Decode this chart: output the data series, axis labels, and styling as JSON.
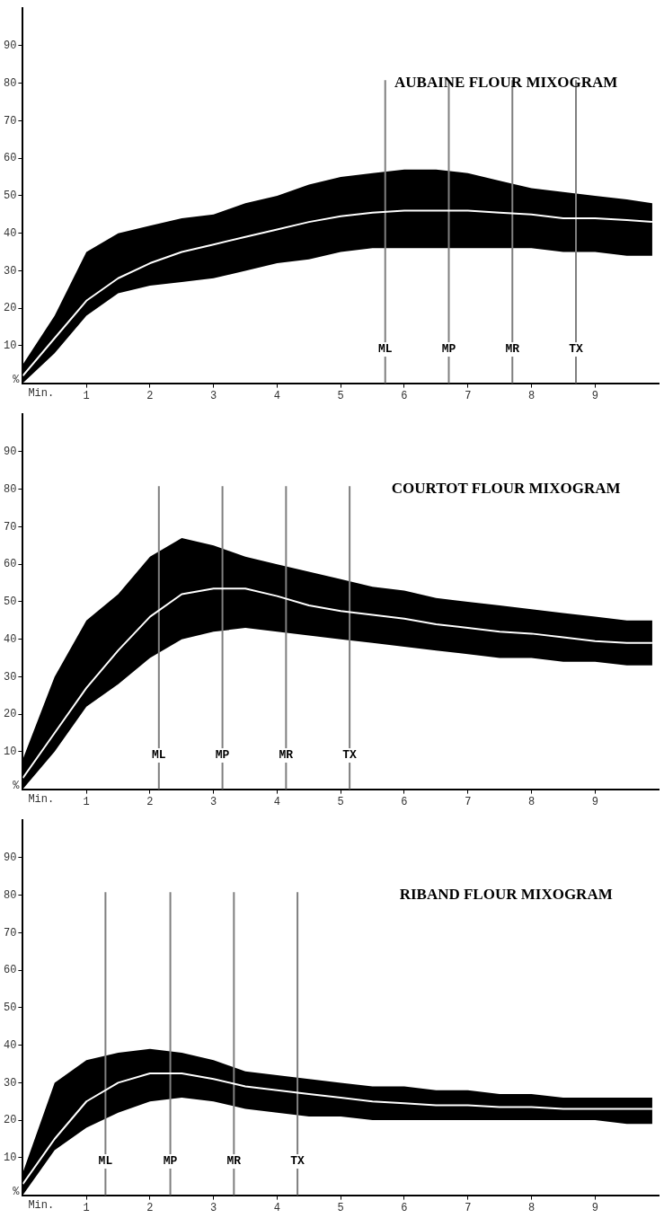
{
  "chart_data": [
    {
      "type": "line",
      "title": "AUBAINE FLOUR MIXOGRAM",
      "xlabel": "Min.",
      "ylabel": "%",
      "xlim": [
        0,
        10
      ],
      "ylim": [
        0,
        100
      ],
      "xticks": [
        1,
        2,
        3,
        4,
        5,
        6,
        7,
        8,
        9
      ],
      "yticks": [
        10,
        20,
        30,
        40,
        50,
        60,
        70,
        80,
        90
      ],
      "grid": false,
      "legend": false,
      "marker": "none",
      "x": [
        0,
        0.5,
        1,
        1.5,
        2,
        2.5,
        3,
        3.5,
        4,
        4.5,
        5,
        5.5,
        6,
        6.5,
        7,
        7.5,
        8,
        8.5,
        9,
        9.5,
        9.9
      ],
      "series": [
        {
          "color": "#ffffff",
          "values": [
            2,
            12,
            22,
            28,
            32,
            35,
            37,
            39,
            41,
            43,
            44.5,
            45.5,
            46,
            46,
            46,
            45.5,
            45,
            44,
            44,
            43.5,
            43
          ],
          "lower": [
            0,
            8,
            18,
            24,
            26,
            27,
            28,
            30,
            32,
            33,
            35,
            36,
            36,
            36,
            36,
            36,
            36,
            35,
            35,
            34,
            34
          ],
          "upper": [
            5,
            18,
            35,
            40,
            42,
            44,
            45,
            48,
            50,
            53,
            55,
            56,
            57,
            57,
            56,
            54,
            52,
            51,
            50,
            49,
            48
          ]
        }
      ],
      "ref_lines": [
        {
          "axis": "x",
          "value": 5.7,
          "label": "ML",
          "color": "#7f7f7f"
        },
        {
          "axis": "x",
          "value": 6.7,
          "label": "MP",
          "color": "#7f7f7f"
        },
        {
          "axis": "x",
          "value": 7.7,
          "label": "MR",
          "color": "#7f7f7f"
        },
        {
          "axis": "x",
          "value": 8.7,
          "label": "TX",
          "color": "#7f7f7f"
        }
      ]
    },
    {
      "type": "line",
      "title": "COURTOT FLOUR MIXOGRAM",
      "xlabel": "Min.",
      "ylabel": "%",
      "xlim": [
        0,
        10
      ],
      "ylim": [
        0,
        100
      ],
      "xticks": [
        1,
        2,
        3,
        4,
        5,
        6,
        7,
        8,
        9
      ],
      "yticks": [
        10,
        20,
        30,
        40,
        50,
        60,
        70,
        80,
        90
      ],
      "grid": false,
      "legend": false,
      "marker": "none",
      "x": [
        0,
        0.5,
        1,
        1.5,
        2,
        2.5,
        3,
        3.5,
        4,
        4.5,
        5,
        5.5,
        6,
        6.5,
        7,
        7.5,
        8,
        8.5,
        9,
        9.5,
        9.9
      ],
      "series": [
        {
          "color": "#ffffff",
          "values": [
            3,
            15,
            27,
            37,
            46,
            52,
            53.5,
            53.5,
            51.5,
            49,
            47.5,
            46.5,
            45.5,
            44,
            43,
            42,
            41.5,
            40.5,
            39.5,
            39,
            39
          ],
          "lower": [
            0,
            10,
            22,
            28,
            35,
            40,
            42,
            43,
            42,
            41,
            40,
            39,
            38,
            37,
            36,
            35,
            35,
            34,
            34,
            33,
            33
          ],
          "upper": [
            8,
            30,
            45,
            52,
            62,
            67,
            65,
            62,
            60,
            58,
            56,
            54,
            53,
            51,
            50,
            49,
            48,
            47,
            46,
            45,
            45
          ]
        }
      ],
      "ref_lines": [
        {
          "axis": "x",
          "value": 2.14,
          "label": "ML",
          "color": "#7f7f7f"
        },
        {
          "axis": "x",
          "value": 3.14,
          "label": "MP",
          "color": "#7f7f7f"
        },
        {
          "axis": "x",
          "value": 4.14,
          "label": "MR",
          "color": "#7f7f7f"
        },
        {
          "axis": "x",
          "value": 5.14,
          "label": "TX",
          "color": "#7f7f7f"
        }
      ]
    },
    {
      "type": "line",
      "title": "RIBAND FLOUR MIXOGRAM",
      "xlabel": "Min.",
      "ylabel": "%",
      "xlim": [
        0,
        10
      ],
      "ylim": [
        0,
        100
      ],
      "xticks": [
        1,
        2,
        3,
        4,
        5,
        6,
        7,
        8,
        9
      ],
      "yticks": [
        10,
        20,
        30,
        40,
        50,
        60,
        70,
        80,
        90
      ],
      "grid": false,
      "legend": false,
      "marker": "none",
      "x": [
        0,
        0.5,
        1,
        1.5,
        2,
        2.5,
        3,
        3.5,
        4,
        4.5,
        5,
        5.5,
        6,
        6.5,
        7,
        7.5,
        8,
        8.5,
        9,
        9.5,
        9.9
      ],
      "series": [
        {
          "color": "#ffffff",
          "values": [
            3,
            15,
            25,
            30,
            32.5,
            32.5,
            31,
            29,
            28,
            27,
            26,
            25,
            24.5,
            24,
            24,
            23.5,
            23.5,
            23,
            23,
            23,
            23
          ],
          "lower": [
            0,
            12,
            18,
            22,
            25,
            26,
            25,
            23,
            22,
            21,
            21,
            20,
            20,
            20,
            20,
            20,
            20,
            20,
            20,
            19,
            19
          ],
          "upper": [
            6,
            30,
            36,
            38,
            39,
            38,
            36,
            33,
            32,
            31,
            30,
            29,
            29,
            28,
            28,
            27,
            27,
            26,
            26,
            26,
            26
          ]
        }
      ],
      "ref_lines": [
        {
          "axis": "x",
          "value": 1.3,
          "label": "ML",
          "color": "#7f7f7f"
        },
        {
          "axis": "x",
          "value": 2.32,
          "label": "MP",
          "color": "#7f7f7f"
        },
        {
          "axis": "x",
          "value": 3.32,
          "label": "MR",
          "color": "#7f7f7f"
        },
        {
          "axis": "x",
          "value": 4.32,
          "label": "TX",
          "color": "#7f7f7f"
        }
      ]
    }
  ]
}
